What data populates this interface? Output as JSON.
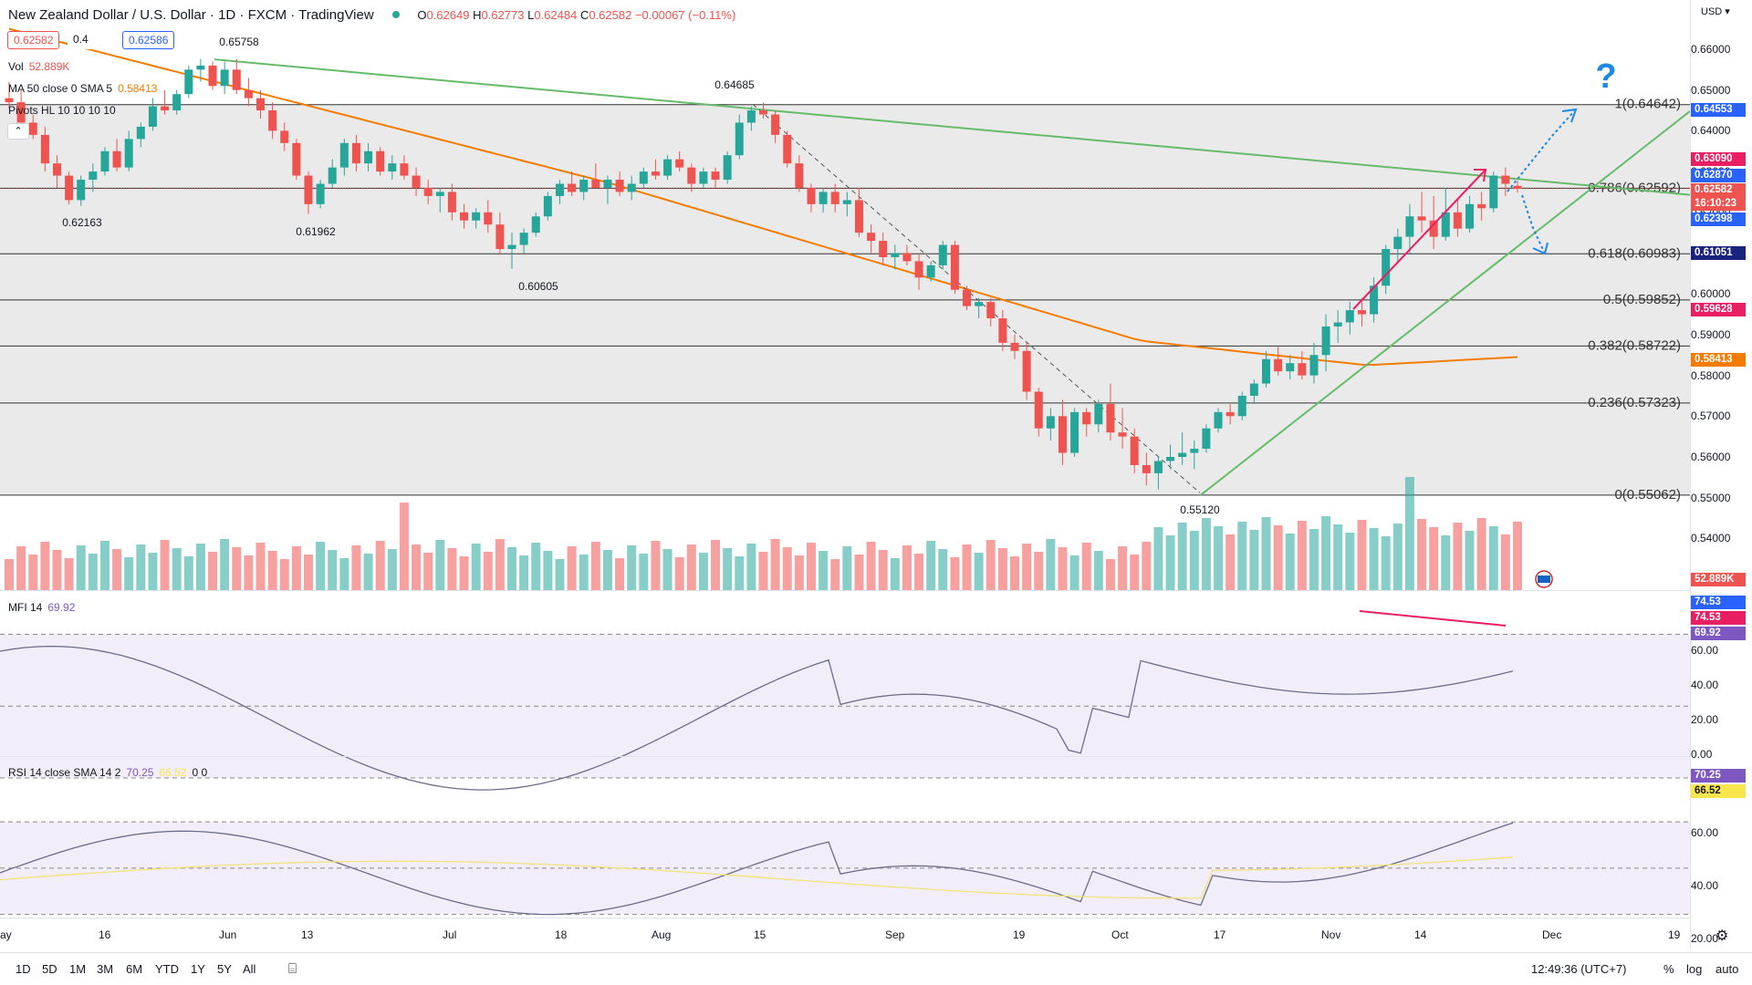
{
  "header": {
    "title": "New Zealand Dollar / U.S. Dollar · 1D · FXCM · TradingView",
    "ohlc": [
      {
        "k": "O",
        "v": "0.62649"
      },
      {
        "k": "H",
        "v": "0.62773"
      },
      {
        "k": "L",
        "v": "0.62484"
      },
      {
        "k": "C",
        "v": "0.62582"
      },
      {
        "k": "",
        "v": "−0.00067 (−0.11%)"
      }
    ],
    "sell_price": "0.62582",
    "spread": "0.4",
    "buy_price": "0.62586"
  },
  "indicators": {
    "vol": {
      "name": "Vol",
      "value": "52.889K"
    },
    "ma": {
      "name": "MA 50 close 0 SMA 5",
      "value": "0.58413"
    },
    "pivots": {
      "name": "Pivots HL 10 10 10 10"
    },
    "mfi": {
      "name": "MFI 14",
      "value": "69.92"
    },
    "rsi": {
      "name": "RSI 14 close SMA 14 2",
      "value": "70.25",
      "value2": "66.52",
      "extra": "0 0"
    }
  },
  "price_axis": {
    "currency": "USD",
    "ticks": [
      "0.66000",
      "0.65000",
      "0.64000",
      "0.63000",
      "0.62000",
      "0.61000",
      "0.60000",
      "0.59000",
      "0.58000",
      "0.57000",
      "0.56000",
      "0.55000",
      "0.54000"
    ],
    "labels": [
      {
        "text": "0.64553",
        "color": "#2962ff"
      },
      {
        "text": "0.63090",
        "color": "#e91e63"
      },
      {
        "text": "0.62870",
        "color": "#2962ff"
      },
      {
        "text": "0.62582",
        "color": "#ef5350"
      },
      {
        "text": "16:10:23",
        "color": "#ef5350"
      },
      {
        "text": "0.62398",
        "color": "#2962ff"
      },
      {
        "text": "0.61051",
        "color": "#1a237e"
      },
      {
        "text": "0.59628",
        "color": "#e91e63"
      },
      {
        "text": "0.58413",
        "color": "#f57c00"
      },
      {
        "text": "52.889K",
        "color": "#ef5350"
      }
    ]
  },
  "mfi_axis": {
    "ticks": [
      "60.00",
      "40.00",
      "20.00",
      "0.00"
    ],
    "labels": [
      {
        "text": "74.53",
        "color": "#2962ff"
      },
      {
        "text": "74.53",
        "color": "#e91e63"
      },
      {
        "text": "69.92",
        "color": "#7e57c2"
      }
    ]
  },
  "rsi_axis": {
    "ticks": [
      "60.00",
      "40.00",
      "20.00"
    ],
    "labels": [
      {
        "text": "70.25",
        "color": "#7e57c2"
      },
      {
        "text": "66.52",
        "color": "#f9e64d"
      }
    ]
  },
  "fib_levels": [
    "1(0.64642)",
    "0.786(0.62592)",
    "0.618(0.60983)",
    "0.5(0.59852)",
    "0.382(0.58722)",
    "0.236(0.57323)",
    "0(0.55062)"
  ],
  "pivot_labels": [
    "0.65758",
    "0.64685",
    "0.62163",
    "0.61962",
    "0.60605",
    "0.55120"
  ],
  "question_mark": "?",
  "time_axis": [
    "ay",
    "16",
    "Jun",
    "13",
    "Jul",
    "18",
    "Aug",
    "15",
    "Sep",
    "19",
    "Oct",
    "17",
    "Nov",
    "14",
    "Dec",
    "19"
  ],
  "ranges": [
    "1D",
    "5D",
    "1M",
    "3M",
    "6M",
    "YTD",
    "1Y",
    "5Y",
    "All"
  ],
  "clock": "12:49:36 (UTC+7)",
  "scale_options": [
    "%",
    "log",
    "auto"
  ],
  "colors": {
    "up": "#26a69a",
    "down": "#ef5350",
    "ma": "#f57c00",
    "trend": "#66bb6a",
    "fib_zone": "#d9d9d9",
    "osc_band": "#7e57c2"
  },
  "chart_data": {
    "type": "candlestick",
    "symbol": "NZDUSD",
    "series": [
      {
        "name": "MA 50",
        "values": []
      }
    ],
    "ylim": [
      0.54,
      0.662
    ],
    "candles": [
      [
        0.648,
        0.652,
        0.6455,
        0.647
      ],
      [
        0.647,
        0.65,
        0.64,
        0.642
      ],
      [
        0.642,
        0.644,
        0.638,
        0.639
      ],
      [
        0.639,
        0.641,
        0.63,
        0.632
      ],
      [
        0.632,
        0.634,
        0.626,
        0.629
      ],
      [
        0.629,
        0.63,
        0.622,
        0.623
      ],
      [
        0.623,
        0.629,
        0.6216,
        0.628
      ],
      [
        0.628,
        0.632,
        0.625,
        0.63
      ],
      [
        0.63,
        0.636,
        0.629,
        0.635
      ],
      [
        0.635,
        0.638,
        0.63,
        0.631
      ],
      [
        0.631,
        0.64,
        0.63,
        0.638
      ],
      [
        0.638,
        0.642,
        0.636,
        0.641
      ],
      [
        0.641,
        0.648,
        0.64,
        0.646
      ],
      [
        0.646,
        0.65,
        0.644,
        0.645
      ],
      [
        0.645,
        0.65,
        0.644,
        0.649
      ],
      [
        0.649,
        0.656,
        0.648,
        0.655
      ],
      [
        0.655,
        0.6576,
        0.652,
        0.656
      ],
      [
        0.656,
        0.657,
        0.65,
        0.651
      ],
      [
        0.651,
        0.657,
        0.649,
        0.655
      ],
      [
        0.655,
        0.6576,
        0.649,
        0.65
      ],
      [
        0.65,
        0.653,
        0.646,
        0.648
      ],
      [
        0.648,
        0.65,
        0.643,
        0.645
      ],
      [
        0.645,
        0.647,
        0.638,
        0.64
      ],
      [
        0.64,
        0.642,
        0.635,
        0.637
      ],
      [
        0.637,
        0.638,
        0.628,
        0.629
      ],
      [
        0.629,
        0.63,
        0.6196,
        0.622
      ],
      [
        0.622,
        0.628,
        0.621,
        0.627
      ],
      [
        0.627,
        0.633,
        0.626,
        0.631
      ],
      [
        0.631,
        0.638,
        0.629,
        0.637
      ],
      [
        0.637,
        0.639,
        0.63,
        0.632
      ],
      [
        0.632,
        0.637,
        0.63,
        0.635
      ],
      [
        0.635,
        0.636,
        0.629,
        0.63
      ],
      [
        0.63,
        0.634,
        0.628,
        0.632
      ],
      [
        0.632,
        0.634,
        0.628,
        0.629
      ],
      [
        0.629,
        0.631,
        0.624,
        0.626
      ],
      [
        0.626,
        0.628,
        0.622,
        0.624
      ],
      [
        0.624,
        0.626,
        0.62,
        0.625
      ],
      [
        0.625,
        0.627,
        0.618,
        0.62
      ],
      [
        0.62,
        0.622,
        0.616,
        0.618
      ],
      [
        0.618,
        0.621,
        0.616,
        0.62
      ],
      [
        0.62,
        0.623,
        0.615,
        0.617
      ],
      [
        0.617,
        0.62,
        0.61,
        0.611
      ],
      [
        0.611,
        0.615,
        0.6061,
        0.612
      ],
      [
        0.612,
        0.616,
        0.61,
        0.615
      ],
      [
        0.615,
        0.62,
        0.614,
        0.619
      ],
      [
        0.619,
        0.625,
        0.618,
        0.624
      ],
      [
        0.624,
        0.628,
        0.622,
        0.627
      ],
      [
        0.627,
        0.63,
        0.624,
        0.625
      ],
      [
        0.625,
        0.629,
        0.623,
        0.628
      ],
      [
        0.628,
        0.632,
        0.626,
        0.626
      ],
      [
        0.626,
        0.629,
        0.622,
        0.628
      ],
      [
        0.628,
        0.63,
        0.624,
        0.625
      ],
      [
        0.625,
        0.629,
        0.623,
        0.627
      ],
      [
        0.627,
        0.631,
        0.626,
        0.63
      ],
      [
        0.63,
        0.633,
        0.628,
        0.629
      ],
      [
        0.629,
        0.634,
        0.628,
        0.633
      ],
      [
        0.633,
        0.635,
        0.63,
        0.631
      ],
      [
        0.631,
        0.632,
        0.625,
        0.627
      ],
      [
        0.627,
        0.631,
        0.626,
        0.63
      ],
      [
        0.63,
        0.631,
        0.626,
        0.628
      ],
      [
        0.628,
        0.635,
        0.627,
        0.634
      ],
      [
        0.634,
        0.644,
        0.633,
        0.642
      ],
      [
        0.642,
        0.646,
        0.64,
        0.645
      ],
      [
        0.645,
        0.6469,
        0.643,
        0.644
      ],
      [
        0.644,
        0.645,
        0.637,
        0.639
      ],
      [
        0.639,
        0.64,
        0.631,
        0.632
      ],
      [
        0.632,
        0.634,
        0.625,
        0.626
      ],
      [
        0.626,
        0.627,
        0.62,
        0.622
      ],
      [
        0.622,
        0.626,
        0.62,
        0.625
      ],
      [
        0.625,
        0.627,
        0.62,
        0.622
      ],
      [
        0.622,
        0.625,
        0.619,
        0.623
      ],
      [
        0.623,
        0.626,
        0.614,
        0.615
      ],
      [
        0.615,
        0.617,
        0.61,
        0.613
      ],
      [
        0.613,
        0.615,
        0.607,
        0.609
      ],
      [
        0.609,
        0.612,
        0.606,
        0.61
      ],
      [
        0.61,
        0.612,
        0.607,
        0.608
      ],
      [
        0.608,
        0.61,
        0.601,
        0.604
      ],
      [
        0.604,
        0.608,
        0.603,
        0.607
      ],
      [
        0.607,
        0.613,
        0.606,
        0.612
      ],
      [
        0.612,
        0.613,
        0.6,
        0.601
      ],
      [
        0.601,
        0.602,
        0.596,
        0.597
      ],
      [
        0.597,
        0.599,
        0.594,
        0.598
      ],
      [
        0.598,
        0.599,
        0.592,
        0.594
      ],
      [
        0.594,
        0.596,
        0.586,
        0.588
      ],
      [
        0.588,
        0.59,
        0.584,
        0.586
      ],
      [
        0.586,
        0.588,
        0.574,
        0.576
      ],
      [
        0.576,
        0.577,
        0.565,
        0.567
      ],
      [
        0.567,
        0.572,
        0.564,
        0.57
      ],
      [
        0.57,
        0.574,
        0.558,
        0.561
      ],
      [
        0.561,
        0.572,
        0.56,
        0.571
      ],
      [
        0.571,
        0.572,
        0.565,
        0.568
      ],
      [
        0.568,
        0.574,
        0.566,
        0.573
      ],
      [
        0.573,
        0.578,
        0.564,
        0.566
      ],
      [
        0.566,
        0.572,
        0.562,
        0.565
      ],
      [
        0.565,
        0.567,
        0.556,
        0.558
      ],
      [
        0.558,
        0.561,
        0.553,
        0.556
      ],
      [
        0.556,
        0.56,
        0.552,
        0.559
      ],
      [
        0.559,
        0.563,
        0.557,
        0.56
      ],
      [
        0.56,
        0.566,
        0.558,
        0.561
      ],
      [
        0.561,
        0.564,
        0.557,
        0.562
      ],
      [
        0.562,
        0.568,
        0.561,
        0.567
      ],
      [
        0.567,
        0.572,
        0.566,
        0.571
      ],
      [
        0.571,
        0.573,
        0.568,
        0.57
      ],
      [
        0.57,
        0.576,
        0.569,
        0.575
      ],
      [
        0.575,
        0.579,
        0.573,
        0.578
      ],
      [
        0.578,
        0.586,
        0.577,
        0.584
      ],
      [
        0.584,
        0.587,
        0.58,
        0.581
      ],
      [
        0.581,
        0.585,
        0.579,
        0.583
      ],
      [
        0.583,
        0.586,
        0.579,
        0.58
      ],
      [
        0.58,
        0.588,
        0.578,
        0.585
      ],
      [
        0.585,
        0.595,
        0.581,
        0.592
      ],
      [
        0.592,
        0.596,
        0.588,
        0.593
      ],
      [
        0.593,
        0.598,
        0.59,
        0.596
      ],
      [
        0.596,
        0.599,
        0.592,
        0.595
      ],
      [
        0.595,
        0.604,
        0.593,
        0.602
      ],
      [
        0.602,
        0.612,
        0.6,
        0.611
      ],
      [
        0.611,
        0.616,
        0.608,
        0.614
      ],
      [
        0.614,
        0.622,
        0.61,
        0.619
      ],
      [
        0.619,
        0.625,
        0.615,
        0.618
      ],
      [
        0.618,
        0.624,
        0.611,
        0.614
      ],
      [
        0.614,
        0.626,
        0.613,
        0.62
      ],
      [
        0.62,
        0.623,
        0.614,
        0.616
      ],
      [
        0.616,
        0.624,
        0.615,
        0.622
      ],
      [
        0.622,
        0.625,
        0.618,
        0.621
      ],
      [
        0.621,
        0.63,
        0.62,
        0.629
      ],
      [
        0.629,
        0.631,
        0.624,
        0.627
      ],
      [
        0.6265,
        0.6277,
        0.6248,
        0.6258
      ]
    ],
    "volume_note": "volume bars colored by candle direction",
    "mfi_bands": [
      80,
      50,
      20
    ],
    "rsi_bands": [
      70,
      50,
      30
    ]
  }
}
